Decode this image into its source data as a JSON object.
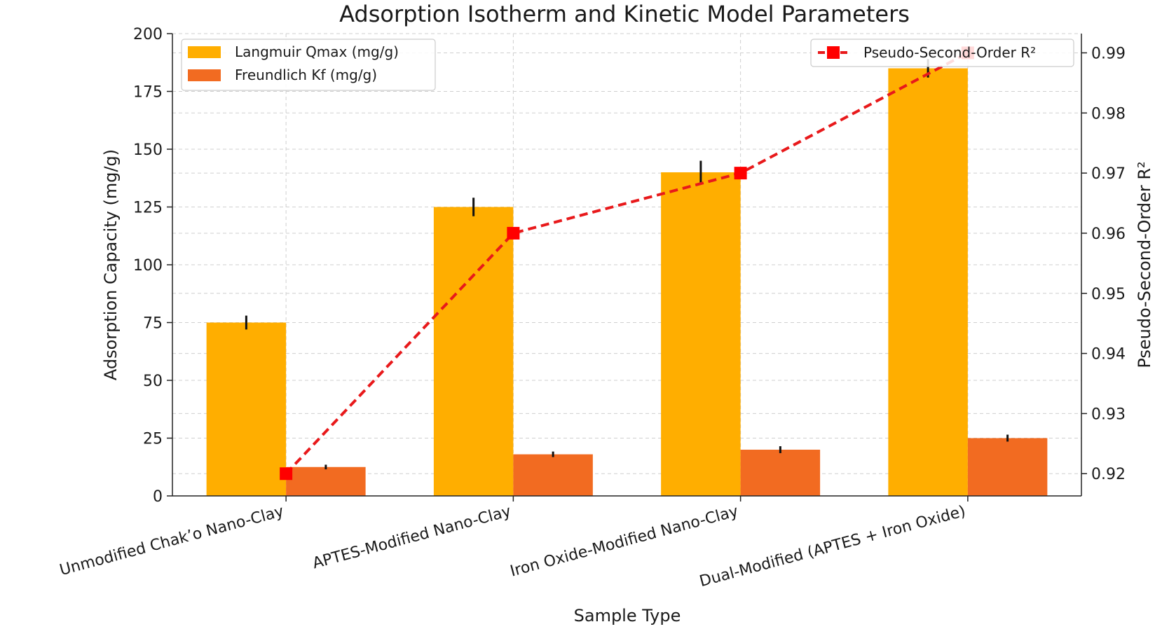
{
  "chart_data": {
    "type": "bar",
    "title": "Adsorption Isotherm and Kinetic Model Parameters",
    "xlabel": "Sample Type",
    "ylabel": "Adsorption Capacity (mg/g)",
    "y2label": "Pseudo-Second-Order R²",
    "ylim": [
      0,
      200
    ],
    "y2lim": [
      0.9163,
      0.9932
    ],
    "yticks": [
      0,
      25,
      50,
      75,
      100,
      125,
      150,
      175,
      200
    ],
    "y2ticks": [
      0.92,
      0.93,
      0.94,
      0.95,
      0.96,
      0.97,
      0.98,
      0.99
    ],
    "grid": true,
    "categories": [
      "Unmodified Chak’o Nano-Clay",
      "APTES-Modified Nano-Clay",
      "Iron Oxide-Modified Nano-Clay",
      "Dual-Modified (APTES + Iron Oxide)"
    ],
    "series": [
      {
        "name": "Langmuir Qmax (mg/g)",
        "kind": "bar",
        "axis": "left",
        "color": "#FFAE00",
        "values": [
          75,
          125,
          140,
          185
        ],
        "errors": [
          3,
          4,
          5,
          4
        ]
      },
      {
        "name": "Freundlich Kf (mg/g)",
        "kind": "bar",
        "axis": "left",
        "color": "#F26B21",
        "values": [
          12.5,
          18,
          20,
          25
        ],
        "errors": [
          1,
          1.2,
          1.5,
          1.5
        ]
      },
      {
        "name": "Pseudo-Second-Order R²",
        "kind": "line",
        "axis": "right",
        "color": "#E8191B",
        "marker_color": "#FF0000",
        "values": [
          0.92,
          0.96,
          0.97,
          0.99
        ]
      }
    ],
    "legend_left_placement": "upper-left",
    "legend_right_placement": "upper-right"
  }
}
